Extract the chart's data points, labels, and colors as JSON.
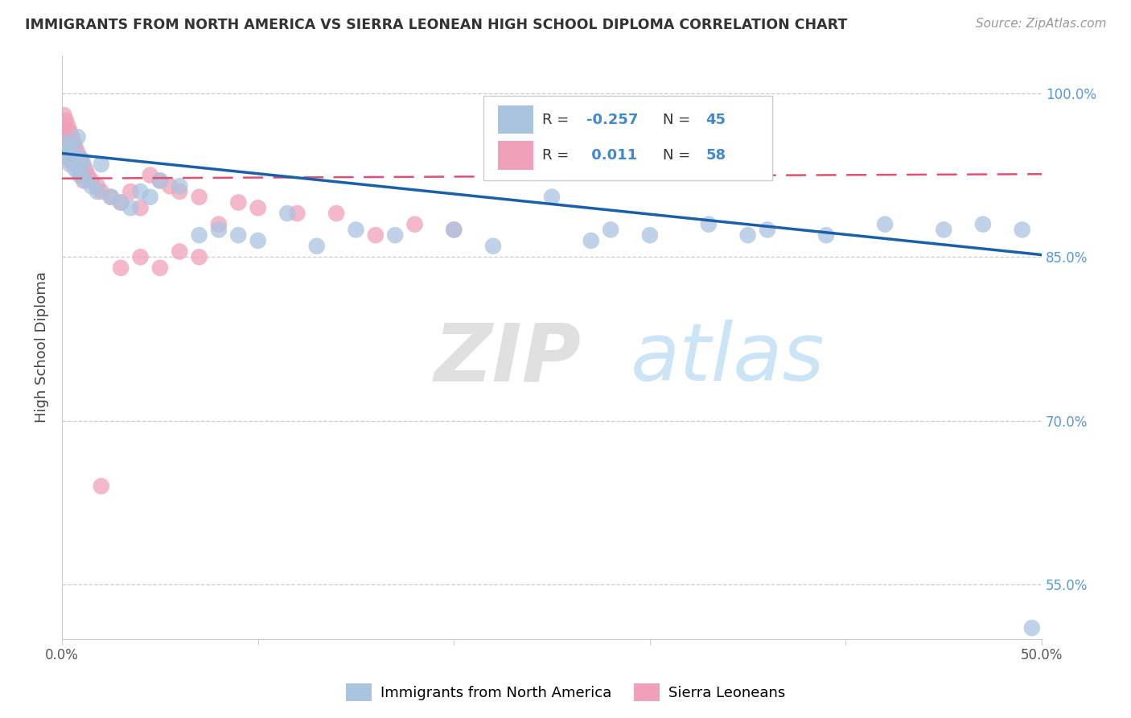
{
  "title": "IMMIGRANTS FROM NORTH AMERICA VS SIERRA LEONEAN HIGH SCHOOL DIPLOMA CORRELATION CHART",
  "source": "Source: ZipAtlas.com",
  "ylabel": "High School Diploma",
  "xlim": [
    0.0,
    0.5
  ],
  "ylim": [
    0.5,
    1.035
  ],
  "blue_R": -0.257,
  "blue_N": 45,
  "pink_R": 0.011,
  "pink_N": 58,
  "blue_color": "#aac4e0",
  "pink_color": "#f0a0b8",
  "blue_line_color": "#1a5faa",
  "pink_line_color": "#e05070",
  "watermark_zip": "ZIP",
  "watermark_atlas": "atlas",
  "legend_blue_label": "Immigrants from North America",
  "legend_pink_label": "Sierra Leoneans",
  "blue_x": [
    0.001,
    0.002,
    0.003,
    0.004,
    0.005,
    0.006,
    0.007,
    0.008,
    0.009,
    0.01,
    0.011,
    0.012,
    0.015,
    0.018,
    0.02,
    0.025,
    0.03,
    0.035,
    0.04,
    0.045,
    0.05,
    0.06,
    0.07,
    0.08,
    0.09,
    0.1,
    0.115,
    0.13,
    0.15,
    0.17,
    0.2,
    0.22,
    0.25,
    0.27,
    0.3,
    0.33,
    0.36,
    0.39,
    0.42,
    0.45,
    0.35,
    0.28,
    0.47,
    0.49,
    0.495
  ],
  "blue_y": [
    0.955,
    0.945,
    0.95,
    0.935,
    0.94,
    0.95,
    0.93,
    0.96,
    0.925,
    0.94,
    0.935,
    0.92,
    0.915,
    0.91,
    0.935,
    0.905,
    0.9,
    0.895,
    0.91,
    0.905,
    0.92,
    0.915,
    0.87,
    0.875,
    0.87,
    0.865,
    0.89,
    0.86,
    0.875,
    0.87,
    0.875,
    0.86,
    0.905,
    0.865,
    0.87,
    0.88,
    0.875,
    0.87,
    0.88,
    0.875,
    0.87,
    0.875,
    0.88,
    0.875,
    0.51
  ],
  "pink_x": [
    0.001,
    0.001,
    0.001,
    0.001,
    0.002,
    0.002,
    0.002,
    0.002,
    0.003,
    0.003,
    0.003,
    0.003,
    0.004,
    0.004,
    0.004,
    0.005,
    0.005,
    0.005,
    0.006,
    0.006,
    0.006,
    0.007,
    0.007,
    0.008,
    0.008,
    0.009,
    0.009,
    0.01,
    0.01,
    0.011,
    0.012,
    0.013,
    0.015,
    0.018,
    0.02,
    0.025,
    0.03,
    0.035,
    0.04,
    0.045,
    0.05,
    0.055,
    0.06,
    0.07,
    0.08,
    0.09,
    0.1,
    0.12,
    0.14,
    0.16,
    0.18,
    0.2,
    0.05,
    0.07,
    0.03,
    0.04,
    0.06,
    0.02
  ],
  "pink_y": [
    0.98,
    0.97,
    0.96,
    0.95,
    0.975,
    0.965,
    0.955,
    0.945,
    0.97,
    0.96,
    0.95,
    0.94,
    0.965,
    0.955,
    0.945,
    0.96,
    0.95,
    0.94,
    0.955,
    0.945,
    0.935,
    0.95,
    0.94,
    0.945,
    0.935,
    0.94,
    0.93,
    0.935,
    0.925,
    0.92,
    0.93,
    0.925,
    0.92,
    0.915,
    0.91,
    0.905,
    0.9,
    0.91,
    0.895,
    0.925,
    0.92,
    0.915,
    0.91,
    0.905,
    0.88,
    0.9,
    0.895,
    0.89,
    0.89,
    0.87,
    0.88,
    0.875,
    0.84,
    0.85,
    0.84,
    0.85,
    0.855,
    0.64
  ],
  "blue_line_x0": 0.0,
  "blue_line_y0": 0.945,
  "blue_line_x1": 0.5,
  "blue_line_y1": 0.852,
  "pink_line_x0": 0.0,
  "pink_line_y0": 0.922,
  "pink_line_x1": 0.5,
  "pink_line_y1": 0.926
}
